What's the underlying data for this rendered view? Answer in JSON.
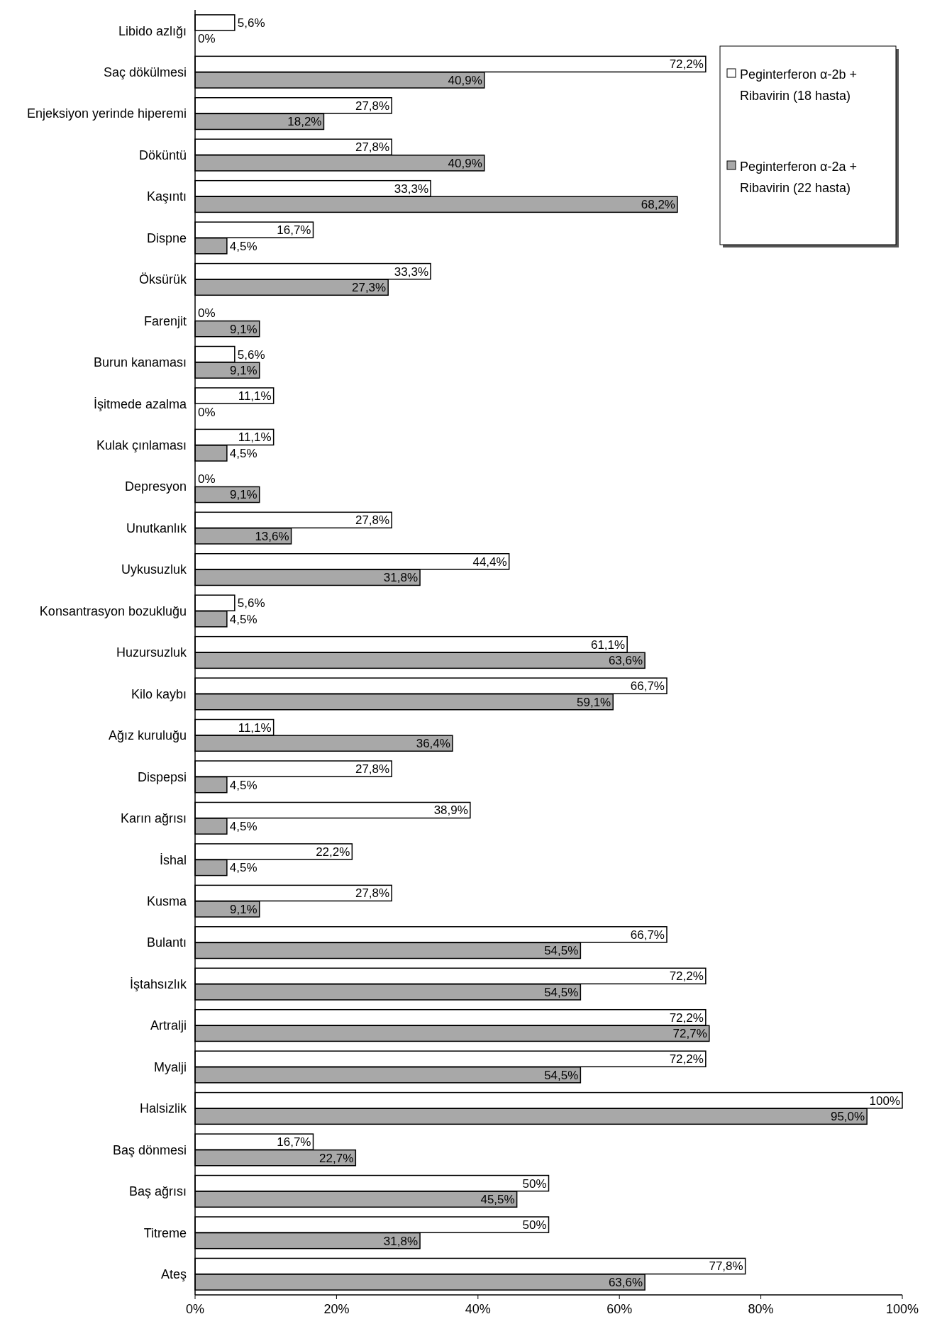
{
  "chart_data": {
    "type": "bar",
    "orientation": "horizontal",
    "categories": [
      "Libido azlığı",
      "Saç dökülmesi",
      "Enjeksiyon yerinde hiperemi",
      "Döküntü",
      "Kaşıntı",
      "Dispne",
      "Öksürük",
      "Farenjit",
      "Burun kanaması",
      "İşitmede azalma",
      "Kulak çınlaması",
      "Depresyon",
      "Unutkanlık",
      "Uykusuzluk",
      "Konsantrasyon bozukluğu",
      "Huzursuzluk",
      "Kilo kaybı",
      "Ağız kuruluğu",
      "Dispepsi",
      "Karın ağrısı",
      "İshal",
      "Kusma",
      "Bulantı",
      "İştahsızlık",
      "Artralji",
      "Myalji",
      "Halsizlik",
      "Baş dönmesi",
      "Baş ağrısı",
      "Titreme",
      "Ateş"
    ],
    "series": [
      {
        "name": "Peginterferon α-2b + Ribavirin (18 hasta)",
        "color": "#ffffff",
        "values": [
          5.6,
          72.2,
          27.8,
          27.8,
          33.3,
          16.7,
          33.3,
          0,
          5.6,
          11.1,
          11.1,
          0,
          27.8,
          44.4,
          5.6,
          61.1,
          66.7,
          11.1,
          27.8,
          38.9,
          22.2,
          27.8,
          66.7,
          72.2,
          72.2,
          72.2,
          100,
          16.7,
          50,
          50,
          77.8
        ],
        "value_labels": [
          "5,6%",
          "72,2%",
          "27,8%",
          "27,8%",
          "33,3%",
          "16,7%",
          "33,3%",
          "0%",
          "5,6%",
          "11,1%",
          "11,1%",
          "0%",
          "27,8%",
          "44,4%",
          "5,6%",
          "61,1%",
          "66,7%",
          "11,1%",
          "27,8%",
          "38,9%",
          "22,2%",
          "27,8%",
          "66,7%",
          "72,2%",
          "72,2%",
          "72,2%",
          "100%",
          "16,7%",
          "50%",
          "50%",
          "77,8%"
        ]
      },
      {
        "name": "Peginterferon α-2a + Ribavirin (22 hasta)",
        "color": "#a8a8a8",
        "values": [
          0,
          40.9,
          18.2,
          40.9,
          68.2,
          4.5,
          27.3,
          9.1,
          9.1,
          0,
          4.5,
          9.1,
          13.6,
          31.8,
          4.5,
          63.6,
          59.1,
          36.4,
          4.5,
          4.5,
          4.5,
          9.1,
          54.5,
          54.5,
          72.7,
          54.5,
          95.0,
          22.7,
          45.5,
          31.8,
          63.6
        ],
        "value_labels": [
          "0%",
          "40,9%",
          "18,2%",
          "40,9%",
          "68,2%",
          "4,5%",
          "27,3%",
          "9,1%",
          "9,1%",
          "0%",
          "4,5%",
          "9,1%",
          "13,6%",
          "31,8%",
          "4,5%",
          "63,6%",
          "59,1%",
          "36,4%",
          "4,5%",
          "4,5%",
          "4,5%",
          "9,1%",
          "54,5%",
          "54,5%",
          "72,7%",
          "54,5%",
          "95,0%",
          "22,7%",
          "45,5%",
          "31,8%",
          "63,6%"
        ]
      }
    ],
    "xlim": [
      0,
      100
    ],
    "xticks": [
      {
        "value": 0,
        "label": "0%"
      },
      {
        "value": 20,
        "label": "20%"
      },
      {
        "value": 40,
        "label": "40%"
      },
      {
        "value": 60,
        "label": "60%"
      },
      {
        "value": 80,
        "label": "80%"
      },
      {
        "value": 100,
        "label": "100%"
      }
    ],
    "legend": "top right",
    "grid": false
  }
}
